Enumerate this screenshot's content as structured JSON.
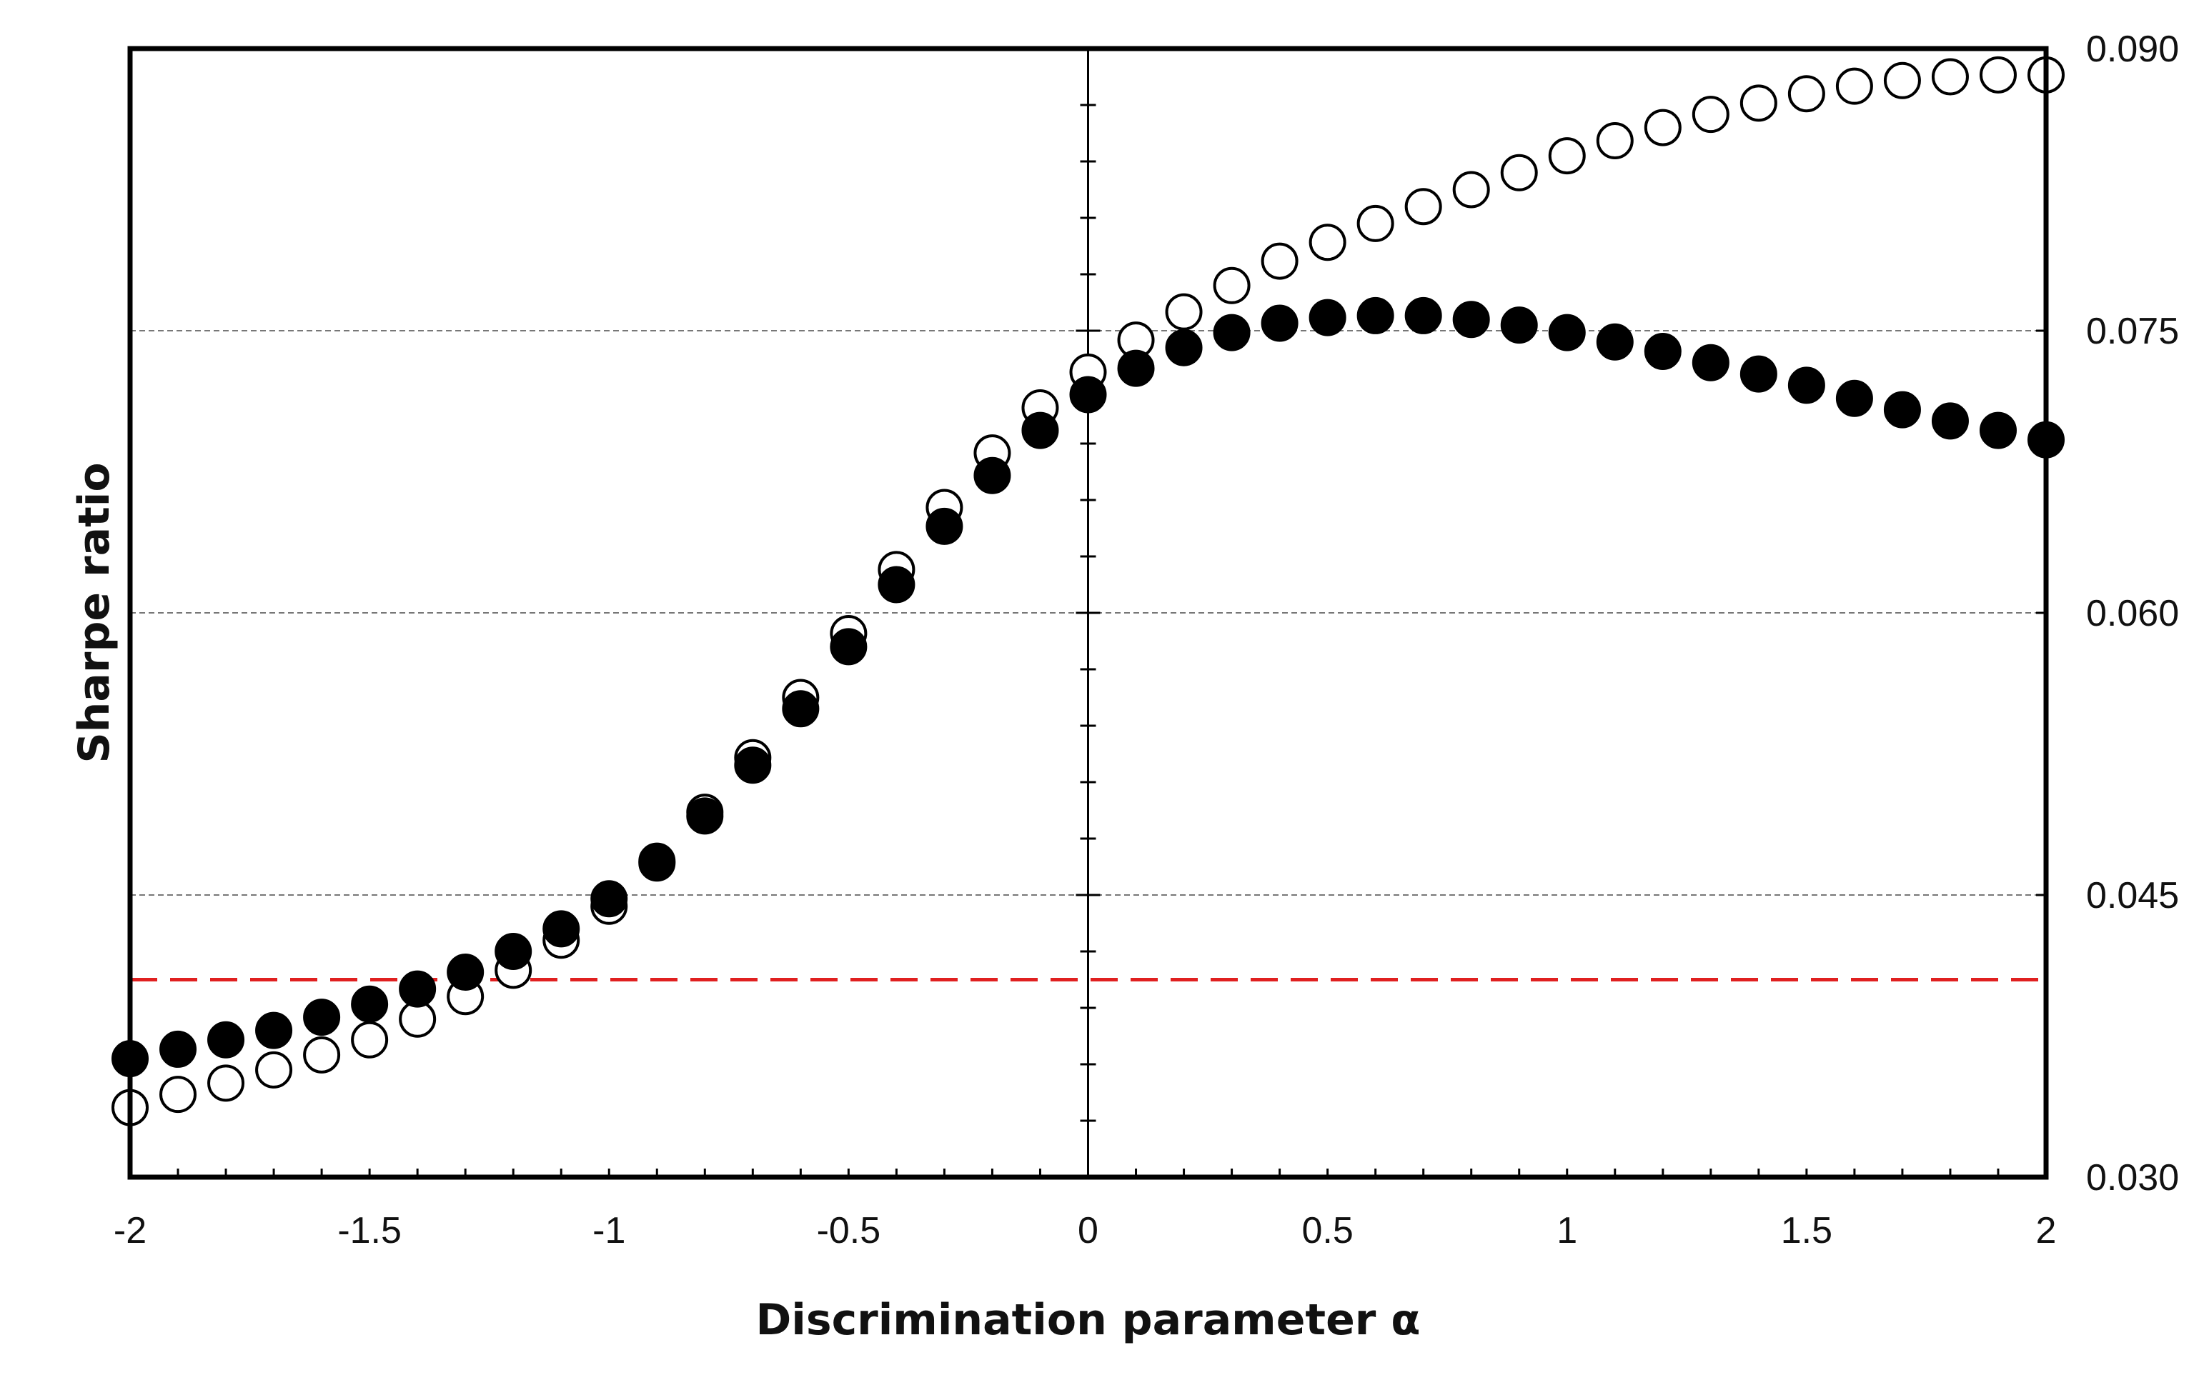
{
  "chart_data": {
    "type": "scatter",
    "title": "",
    "xlabel": "Discrimination parameter α",
    "ylabel": "Sharpe ratio",
    "xlim": [
      -2,
      2
    ],
    "ylim": [
      0.03,
      0.09
    ],
    "x_ticks": [
      "-2",
      "-1.5",
      "-1",
      "-0.5",
      "0",
      "0.5",
      "1",
      "1.5",
      "2"
    ],
    "y_ticks": [
      "0.030",
      "0.045",
      "0.060",
      "0.075",
      "0.090"
    ],
    "gridlines_y": [
      0.045,
      0.06,
      0.075
    ],
    "reference_line": {
      "y": 0.0405,
      "style": "dashed",
      "color": "#e02020"
    },
    "series": [
      {
        "name": "open circles",
        "marker": "open",
        "x": [
          -2,
          -1.9,
          -1.8,
          -1.7,
          -1.6,
          -1.5,
          -1.4,
          -1.3,
          -1.2,
          -1.1,
          -1,
          -0.9,
          -0.8,
          -0.7,
          -0.6,
          -0.5,
          -0.4,
          -0.3,
          -0.2,
          -0.1,
          0,
          0.1,
          0.2,
          0.3,
          0.4,
          0.5,
          0.6,
          0.7,
          0.8,
          0.9,
          1,
          1.1,
          1.2,
          1.3,
          1.4,
          1.5,
          1.6,
          1.7,
          1.8,
          1.9,
          2
        ],
        "y": [
          0.0337,
          0.0344,
          0.035,
          0.0357,
          0.0365,
          0.0373,
          0.0384,
          0.0396,
          0.041,
          0.0426,
          0.0444,
          0.0468,
          0.0494,
          0.0523,
          0.0555,
          0.0589,
          0.0623,
          0.0656,
          0.0685,
          0.0709,
          0.0728,
          0.0745,
          0.076,
          0.0774,
          0.0787,
          0.0797,
          0.0807,
          0.0816,
          0.0825,
          0.0834,
          0.0843,
          0.0851,
          0.0858,
          0.0865,
          0.0871,
          0.0876,
          0.088,
          0.0883,
          0.0885,
          0.0886,
          0.0886
        ]
      },
      {
        "name": "filled circles",
        "marker": "filled",
        "x": [
          -2,
          -1.9,
          -1.8,
          -1.7,
          -1.6,
          -1.5,
          -1.4,
          -1.3,
          -1.2,
          -1.1,
          -1,
          -0.9,
          -0.8,
          -0.7,
          -0.6,
          -0.5,
          -0.4,
          -0.3,
          -0.2,
          -0.1,
          0,
          0.1,
          0.2,
          0.3,
          0.4,
          0.5,
          0.6,
          0.7,
          0.8,
          0.9,
          1,
          1.1,
          1.2,
          1.3,
          1.4,
          1.5,
          1.6,
          1.7,
          1.8,
          1.9,
          2
        ],
        "y": [
          0.0363,
          0.0368,
          0.0373,
          0.0378,
          0.0385,
          0.0392,
          0.04,
          0.0409,
          0.042,
          0.0432,
          0.0448,
          0.0467,
          0.0492,
          0.0519,
          0.0549,
          0.0582,
          0.0615,
          0.0646,
          0.0673,
          0.0697,
          0.0716,
          0.073,
          0.0741,
          0.0749,
          0.0754,
          0.0757,
          0.0758,
          0.0758,
          0.0756,
          0.0753,
          0.0749,
          0.0744,
          0.0739,
          0.0733,
          0.0727,
          0.0721,
          0.0714,
          0.0708,
          0.0702,
          0.0697,
          0.0692
        ]
      }
    ]
  }
}
